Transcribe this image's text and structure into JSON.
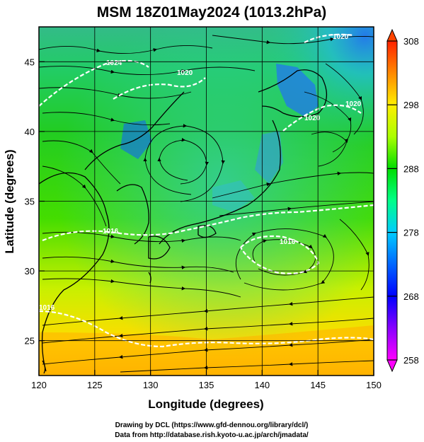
{
  "title": "MSM 18Z01May2024 (1013.2hPa)",
  "x_axis": {
    "label": "Longitude (degrees)",
    "range": [
      120,
      150
    ],
    "ticks": [
      120,
      125,
      130,
      135,
      140,
      145,
      150
    ]
  },
  "y_axis": {
    "label": "Latitude  (degrees)",
    "range": [
      22.5,
      47.5
    ],
    "ticks": [
      25,
      30,
      35,
      40,
      45
    ]
  },
  "colorbar": {
    "range": [
      258,
      308
    ],
    "ticks": [
      258,
      268,
      278,
      288,
      298,
      308
    ],
    "colors": [
      "#ff00ff",
      "#8800ff",
      "#0000ff",
      "#0066ff",
      "#00ccff",
      "#00ff88",
      "#00dd00",
      "#55ff00",
      "#ddff00",
      "#ffcc00",
      "#ff8800",
      "#ff3300"
    ]
  },
  "isobar_labels": [
    "1024",
    "1020",
    "1020",
    "1016",
    "1016",
    "1020",
    "1020",
    "1016"
  ],
  "credits": [
    "Drawing by DCL (https://www.gfd-dennou.org/library/dcl/)",
    "Data from http://database.rish.kyoto-u.ac.jp/arch/jmadata/"
  ]
}
